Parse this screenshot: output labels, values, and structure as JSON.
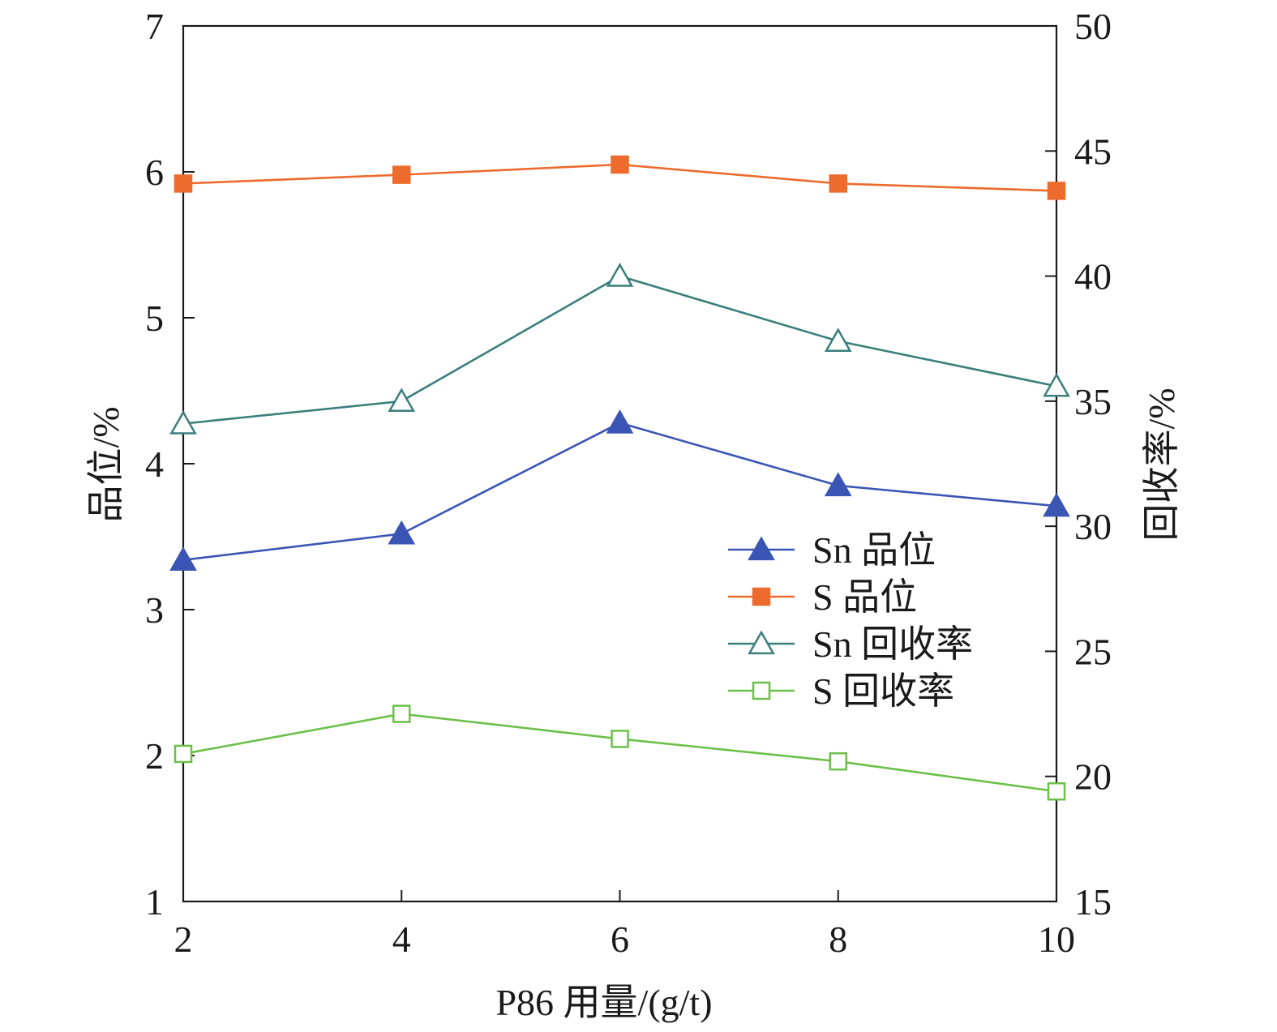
{
  "chart_data": {
    "type": "line",
    "title": "",
    "xlabel": "P86 用量/(g/t)",
    "ylabel_left": "品位/%",
    "ylabel_right": "回收率/%",
    "x": [
      2,
      4,
      6,
      8,
      10
    ],
    "xlim": [
      2,
      10
    ],
    "ylim_left": [
      1,
      7
    ],
    "ylim_right": [
      15,
      50
    ],
    "x_ticks": [
      "2",
      "4",
      "6",
      "8",
      "10"
    ],
    "y_left_ticks": [
      "1",
      "2",
      "3",
      "4",
      "5",
      "6",
      "7"
    ],
    "y_right_ticks": [
      "15",
      "20",
      "25",
      "30",
      "35",
      "40",
      "45",
      "50"
    ],
    "grid": false,
    "legend_position": "right-center",
    "series": [
      {
        "name": "Sn 品位",
        "axis": "left",
        "marker": "filled-triangle",
        "color": "#3a55b4",
        "values": [
          3.34,
          3.52,
          4.28,
          3.85,
          3.71
        ]
      },
      {
        "name": "S 品位",
        "axis": "left",
        "marker": "filled-square",
        "color": "#ec6b2d",
        "values": [
          5.92,
          5.98,
          6.05,
          5.92,
          5.87
        ]
      },
      {
        "name": "Sn 回收率",
        "axis": "right",
        "marker": "open-triangle",
        "color": "#3a7f7b",
        "values": [
          34.1,
          35.0,
          40.0,
          37.4,
          35.6
        ]
      },
      {
        "name": "S 回收率",
        "axis": "right",
        "marker": "open-square",
        "color": "#6cc04a",
        "values": [
          20.9,
          22.5,
          21.5,
          20.6,
          19.4
        ]
      }
    ]
  }
}
